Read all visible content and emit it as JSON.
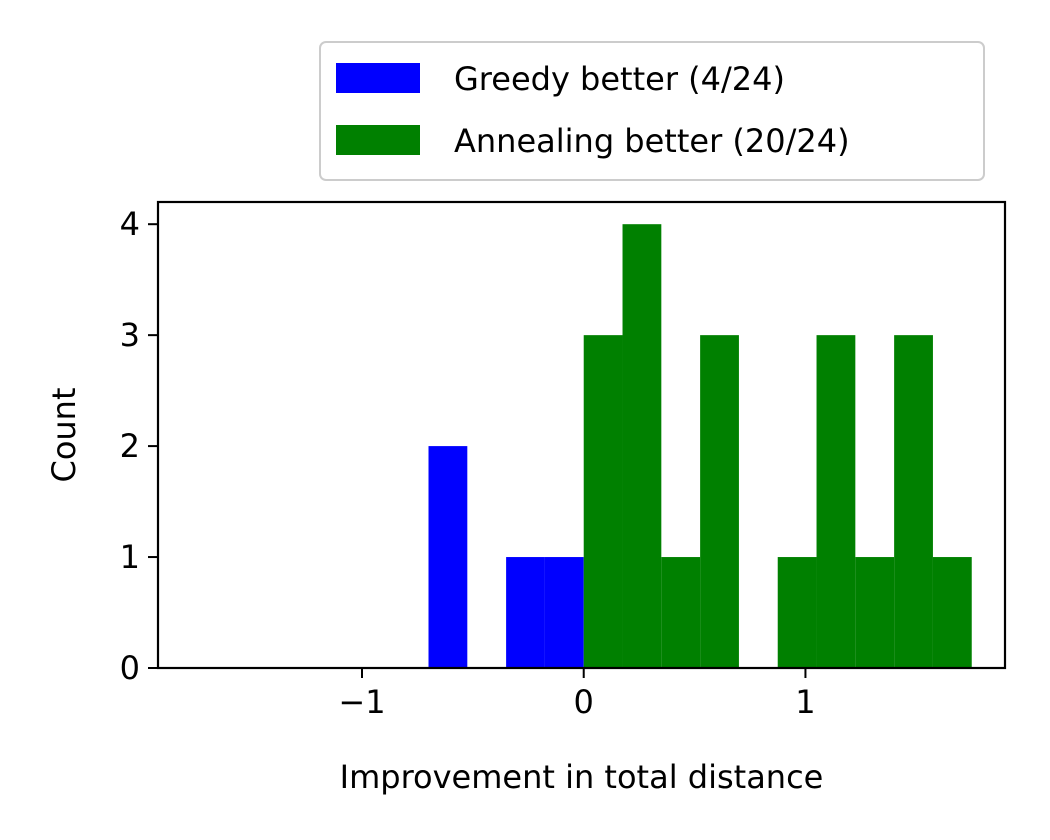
{
  "chart_data": {
    "type": "bar",
    "title": "",
    "xlabel": "Improvement in total distance",
    "ylabel": "Count",
    "xlim": [
      -1.92,
      1.9
    ],
    "ylim": [
      0,
      4.2
    ],
    "xticks": [
      -1,
      0,
      1
    ],
    "xtick_labels": [
      "−1",
      "0",
      "1"
    ],
    "yticks": [
      0,
      1,
      2,
      3,
      4
    ],
    "ytick_labels": [
      "0",
      "1",
      "2",
      "3",
      "4"
    ],
    "grid": false,
    "legend_position": "above plot, right",
    "series": [
      {
        "name": "Greedy better (4/24)",
        "color": "#0000ff",
        "bins": [
          {
            "x0": -0.7,
            "x1": -0.525,
            "count": 2
          },
          {
            "x0": -0.35,
            "x1": -0.175,
            "count": 1
          },
          {
            "x0": -0.175,
            "x1": 0.0,
            "count": 1
          }
        ]
      },
      {
        "name": "Annealing better (20/24)",
        "color": "#008000",
        "bins": [
          {
            "x0": 0.0,
            "x1": 0.175,
            "count": 3
          },
          {
            "x0": 0.175,
            "x1": 0.35,
            "count": 4
          },
          {
            "x0": 0.35,
            "x1": 0.525,
            "count": 1
          },
          {
            "x0": 0.525,
            "x1": 0.7,
            "count": 3
          },
          {
            "x0": 0.875,
            "x1": 1.05,
            "count": 1
          },
          {
            "x0": 1.05,
            "x1": 1.225,
            "count": 3
          },
          {
            "x0": 1.225,
            "x1": 1.4,
            "count": 1
          },
          {
            "x0": 1.4,
            "x1": 1.575,
            "count": 3
          },
          {
            "x0": 1.575,
            "x1": 1.75,
            "count": 1
          }
        ]
      }
    ]
  }
}
